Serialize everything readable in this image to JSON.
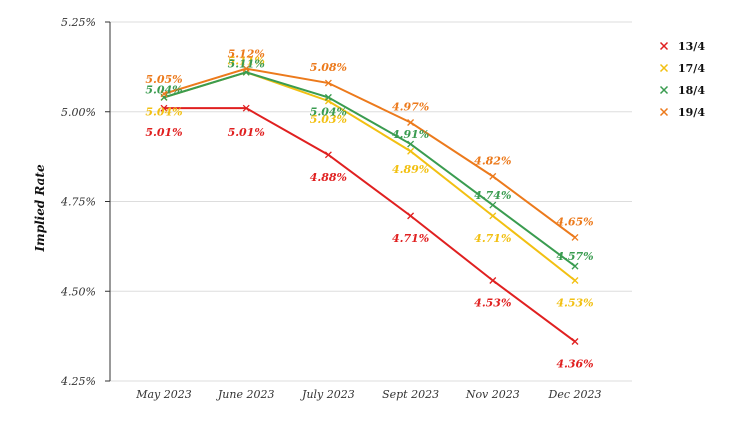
{
  "chart_data": {
    "type": "line",
    "title": "",
    "xlabel": "",
    "ylabel": "Implied Rate",
    "categories": [
      "May 2023",
      "June 2023",
      "July 2023",
      "Sept 2023",
      "Nov 2023",
      "Dec 2023"
    ],
    "ylim": [
      4.25,
      5.25
    ],
    "yticks": [
      "4.25%",
      "4.50%",
      "4.75%",
      "5.00%",
      "5.25%"
    ],
    "grid": true,
    "legend_position": "top-right",
    "series": [
      {
        "name": "13/4",
        "color": "#e02020",
        "values": [
          5.01,
          5.01,
          4.88,
          4.71,
          4.53,
          4.36
        ],
        "labels": [
          "5.01%",
          "5.01%",
          "4.88%",
          "4.71%",
          "4.53%",
          "4.36%"
        ]
      },
      {
        "name": "17/4",
        "color": "#f2c012",
        "values": [
          5.04,
          5.11,
          5.03,
          4.89,
          4.71,
          4.53
        ],
        "labels": [
          "5.04%",
          "5.11%",
          "5.03%",
          "4.89%",
          "4.71%",
          "4.53%"
        ]
      },
      {
        "name": "18/4",
        "color": "#3a9c50",
        "values": [
          5.04,
          5.11,
          5.04,
          4.91,
          4.74,
          4.57
        ],
        "labels": [
          "5.04%",
          "5.11%",
          "5.04%",
          "4.91%",
          "4.74%",
          "4.57%"
        ]
      },
      {
        "name": "19/4",
        "color": "#ec7a1c",
        "values": [
          5.05,
          5.12,
          5.08,
          4.97,
          4.82,
          4.65
        ],
        "labels": [
          "5.05%",
          "5.12%",
          "5.08%",
          "4.97%",
          "4.82%",
          "4.65%"
        ]
      }
    ]
  }
}
